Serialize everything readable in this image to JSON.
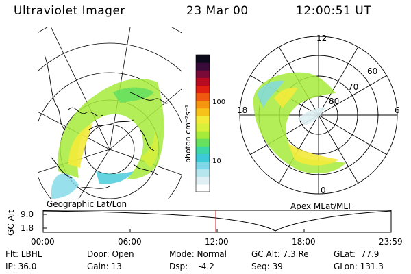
{
  "header": {
    "instrument": "Ultraviolet Imager",
    "date": "23 Mar 00",
    "time": "12:00:51 UT"
  },
  "colorbar": {
    "label": "photon cm⁻²s⁻¹",
    "ticks": [
      "100",
      "10"
    ],
    "colors": [
      "#ffffff",
      "#dfeff3",
      "#b8e6ee",
      "#7fd8e8",
      "#3ec9d8",
      "#3cd6a8",
      "#66e060",
      "#a6ea3a",
      "#d8f03a",
      "#f3ea3a",
      "#f7c31a",
      "#f59510",
      "#ef5a10",
      "#e02010",
      "#b80a20",
      "#7a0a38",
      "#3a0a3a",
      "#0a0a1a"
    ],
    "levels": [
      0.0,
      0.04,
      0.09,
      0.15,
      0.22,
      0.3,
      0.38,
      0.46,
      0.54,
      0.6,
      0.66,
      0.72,
      0.78,
      0.84,
      0.89,
      0.93,
      0.97,
      1.0
    ]
  },
  "left_panel": {
    "label": "Geographic Lat/Lon"
  },
  "right_panel": {
    "label": "Apex MLat/MLT",
    "mlt_labels": [
      "12",
      "18",
      "6",
      "0"
    ],
    "lat_labels": [
      "60",
      "70",
      "80"
    ]
  },
  "altitude_plot": {
    "ylabel": "GC Alt",
    "yticks": [
      "9.0",
      "1.8"
    ],
    "xticks": [
      "00:00",
      "06:00",
      "12:00",
      "18:00",
      "23:59"
    ],
    "current_time_marker": "12:00",
    "marker_color": "#cc2222"
  },
  "info": {
    "flt": "Flt: LBHL",
    "ip": "IP: 36.0",
    "door": "Door: Open",
    "gain": "Gain: 13",
    "mode": "Mode: Normal",
    "dsp": "Dsp:    -4.2",
    "gcalt": "GC Alt: 7.3 Re",
    "seq": "Seq: 39",
    "glat": "GLat:  77.9",
    "glon": "GLon: 131.3"
  }
}
